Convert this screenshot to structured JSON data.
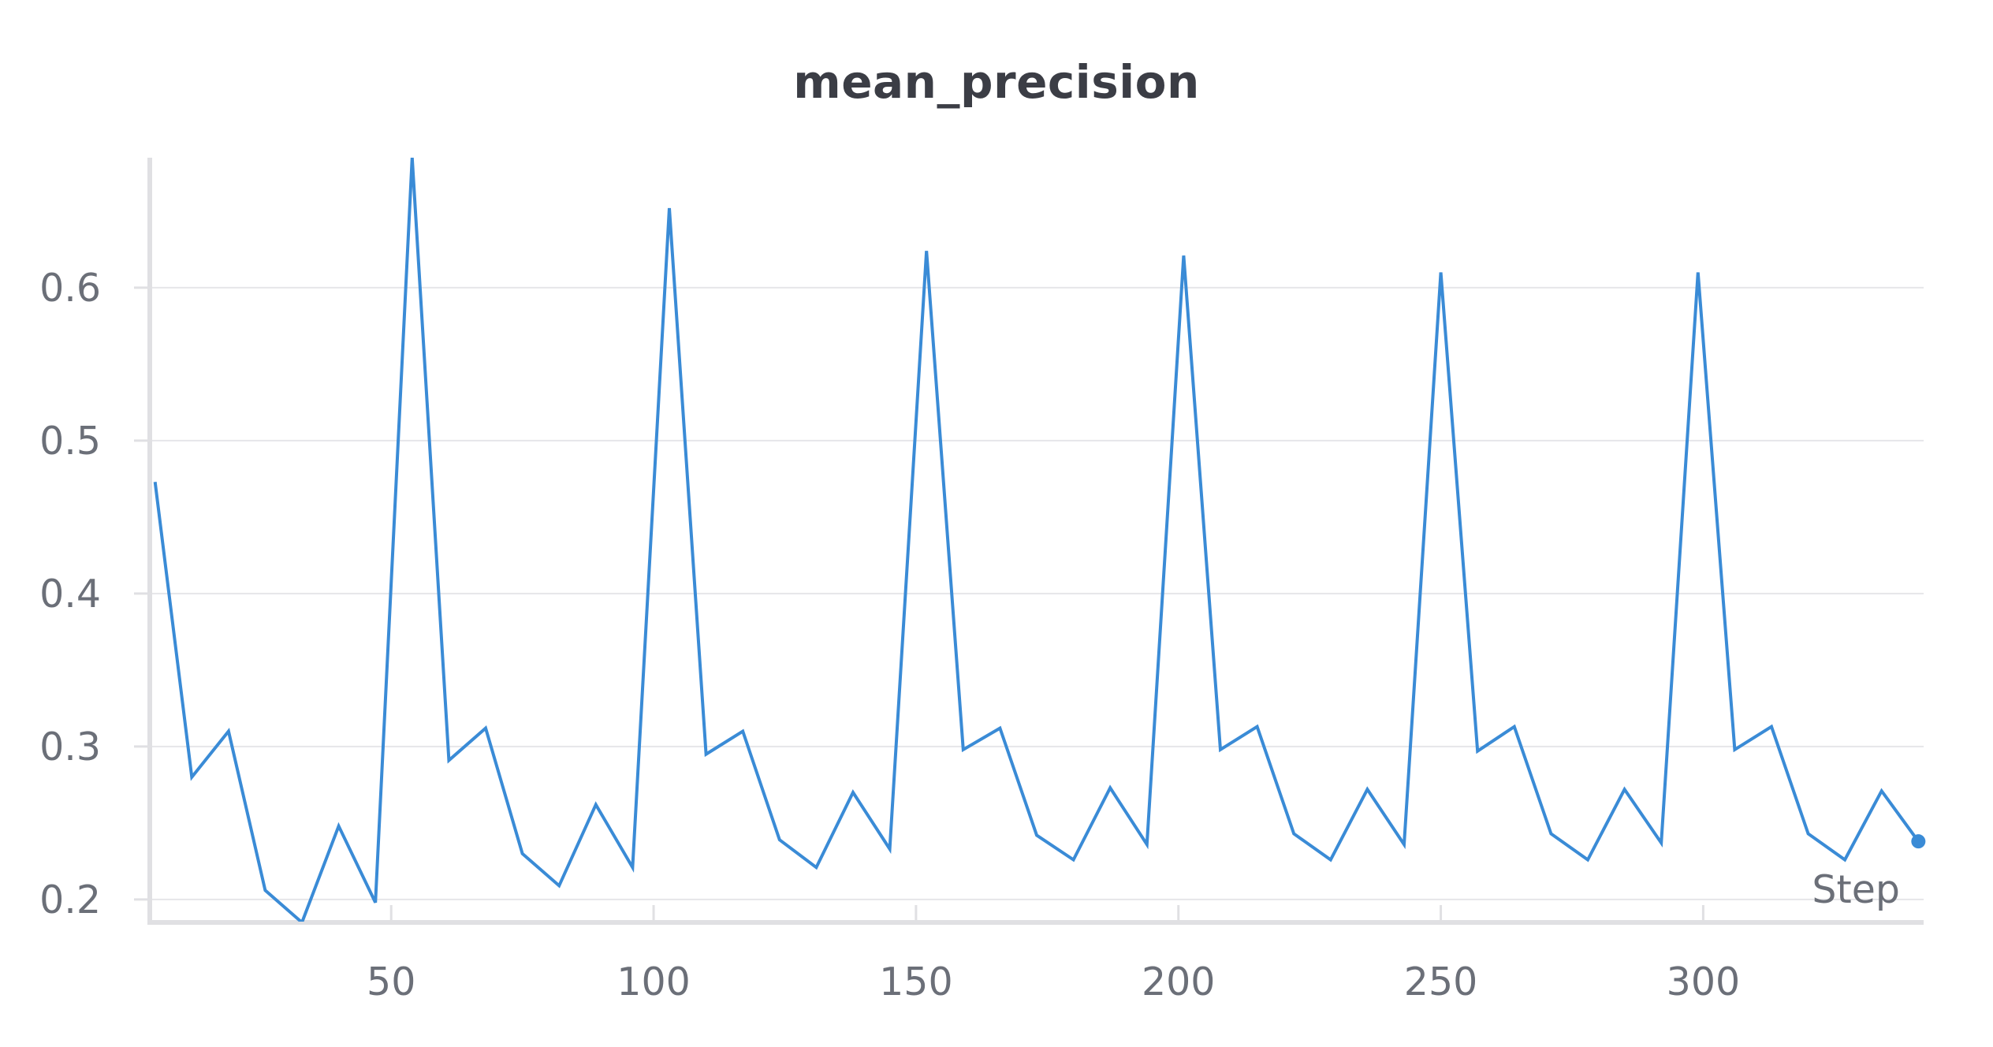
{
  "chart_data": {
    "type": "line",
    "title": "mean_precision",
    "xlabel": "Step",
    "ylabel": "",
    "xlim": [
      4,
      342
    ],
    "ylim": [
      0.185,
      0.685
    ],
    "x_ticks": [
      50,
      100,
      150,
      200,
      250,
      300
    ],
    "y_ticks": [
      0.2,
      0.3,
      0.4,
      0.5,
      0.6
    ],
    "x_tick_labels": [
      "50",
      "100",
      "150",
      "200",
      "250",
      "300"
    ],
    "y_tick_labels": [
      "0.2",
      "0.3",
      "0.4",
      "0.5",
      "0.6"
    ],
    "grid": true,
    "legend": "none",
    "line_color": "#3a8bd6",
    "series": [
      {
        "x": [
          5,
          12,
          19,
          26,
          33,
          40,
          47,
          54,
          61,
          68,
          75,
          82,
          89,
          96,
          103,
          110,
          117,
          124,
          131,
          138,
          145,
          152,
          159,
          166,
          173,
          180,
          187,
          194,
          201,
          208,
          215,
          222,
          229,
          236,
          243,
          250,
          257,
          264,
          271,
          278,
          285,
          292,
          299,
          306,
          313,
          320,
          327,
          334,
          341
        ],
        "values": [
          0.473,
          0.28,
          0.31,
          0.206,
          0.185,
          0.248,
          0.198,
          0.685,
          0.291,
          0.312,
          0.23,
          0.209,
          0.262,
          0.221,
          0.652,
          0.295,
          0.31,
          0.239,
          0.221,
          0.27,
          0.233,
          0.624,
          0.298,
          0.312,
          0.242,
          0.226,
          0.273,
          0.236,
          0.621,
          0.298,
          0.313,
          0.243,
          0.226,
          0.272,
          0.236,
          0.61,
          0.297,
          0.313,
          0.243,
          0.226,
          0.272,
          0.237,
          0.61,
          0.298,
          0.313,
          0.243,
          0.226,
          0.271,
          0.238
        ]
      }
    ]
  }
}
